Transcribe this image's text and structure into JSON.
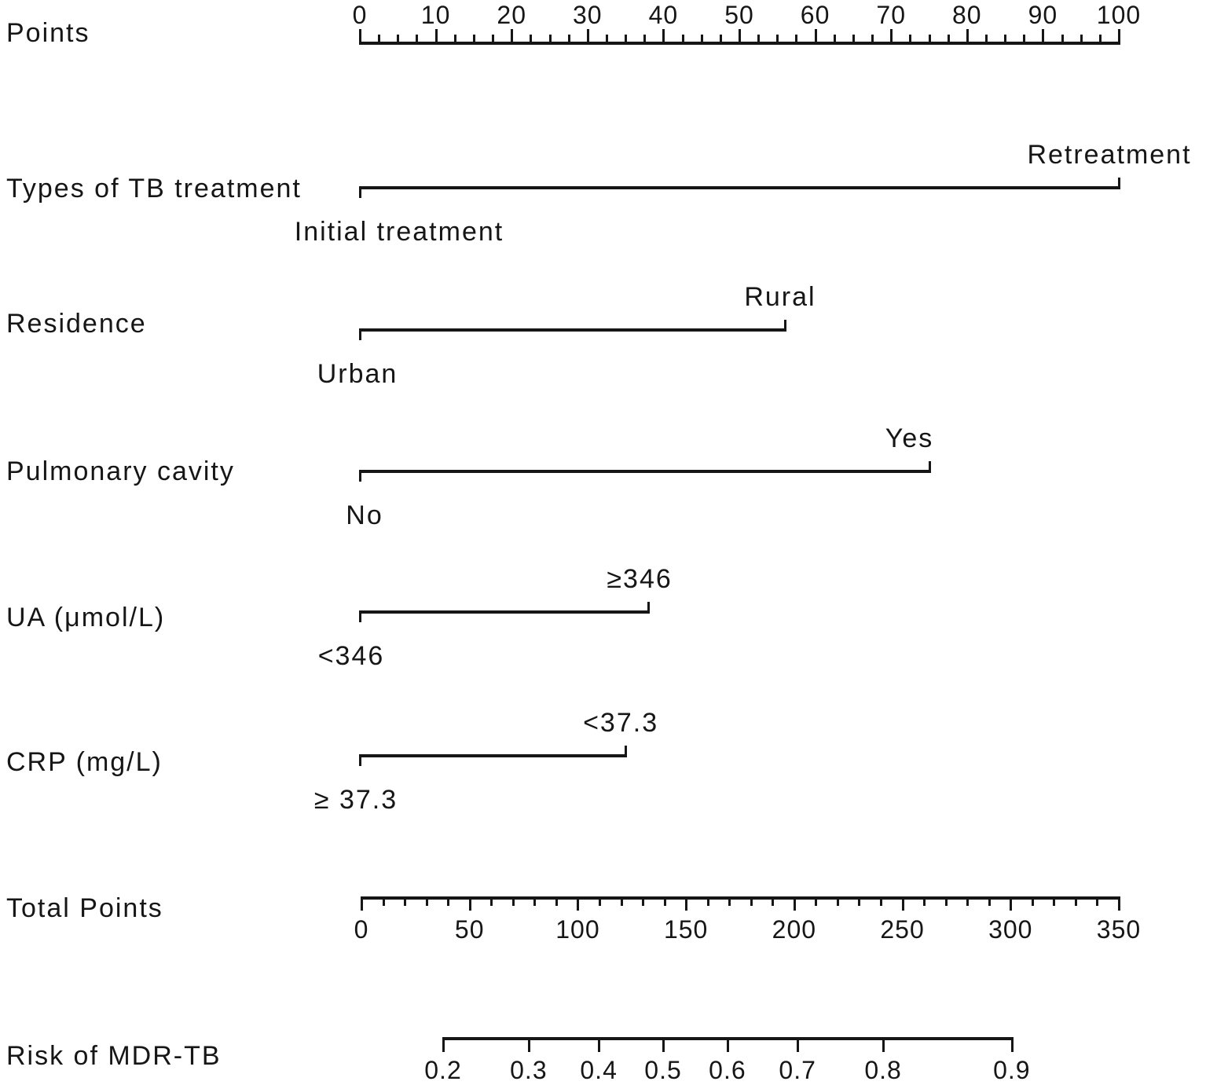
{
  "background_color": "#ffffff",
  "ink_color": "#161616",
  "chart_data": {
    "type": "nomogram",
    "points_axis": {
      "label": "Points",
      "min": 0,
      "max": 100,
      "major_step": 10,
      "minor_step": 2.5,
      "tick_labels": [
        "0",
        "10",
        "20",
        "30",
        "40",
        "50",
        "60",
        "70",
        "80",
        "90",
        "100"
      ]
    },
    "predictors": [
      {
        "label": "Types of TB treatment",
        "low": {
          "text": "Initial treatment",
          "points": 0
        },
        "high": {
          "text": "Retreatment",
          "points": 100
        }
      },
      {
        "label": "Residence",
        "low": {
          "text": "Urban",
          "points": 0
        },
        "high": {
          "text": "Rural",
          "points": 56
        }
      },
      {
        "label": "Pulmonary cavity",
        "low": {
          "text": "No",
          "points": 0
        },
        "high": {
          "text": "Yes",
          "points": 75
        }
      },
      {
        "label": "UA (μmol/L)",
        "low": {
          "text": "<346",
          "points": 0
        },
        "high": {
          "text": "≥346",
          "points": 38
        }
      },
      {
        "label": "CRP (mg/L)",
        "low": {
          "text": "≥ 37.3",
          "points": 0
        },
        "high": {
          "text": "<37.3",
          "points": 35
        }
      }
    ],
    "total_points_axis": {
      "label": "Total Points",
      "min": 0,
      "max": 350,
      "major_step": 50,
      "minor_step": 10,
      "tick_labels": [
        "0",
        "50",
        "100",
        "150",
        "200",
        "250",
        "300",
        "350"
      ]
    },
    "risk_axis": {
      "label": "Risk of MDR-TB",
      "scale": "logit",
      "tick_values": [
        0.2,
        0.3,
        0.4,
        0.5,
        0.6,
        0.7,
        0.8,
        0.9
      ],
      "tick_labels": [
        "0.2",
        "0.3",
        "0.4",
        "0.5",
        "0.6",
        "0.7",
        "0.8",
        "0.9"
      ]
    }
  }
}
